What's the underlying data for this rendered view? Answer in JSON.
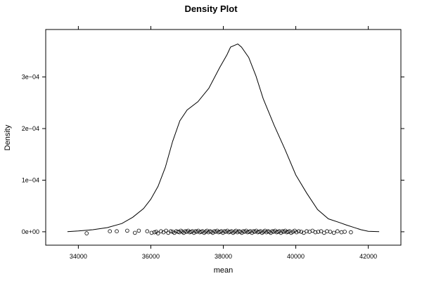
{
  "chart_data": {
    "type": "density",
    "title": "Density Plot",
    "xlabel": "mean",
    "ylabel": "Density",
    "xlim": [
      33100,
      42900
    ],
    "ylim": [
      -2.6e-05,
      0.000392
    ],
    "x_ticks": [
      34000,
      36000,
      38000,
      40000,
      42000
    ],
    "x_tick_labels": [
      "34000",
      "36000",
      "38000",
      "40000",
      "42000"
    ],
    "y_ticks": [
      0,
      0.0001,
      0.0002,
      0.0003
    ],
    "y_tick_labels": [
      "0e+00",
      "1e−04",
      "2e−04",
      "3e−04"
    ],
    "grid": false,
    "line_color": "#000000",
    "point_color": "#000000",
    "series": [
      {
        "kind": "line",
        "x": [
          33700,
          34000,
          34400,
          34800,
          35200,
          35500,
          35800,
          36000,
          36200,
          36400,
          36600,
          36800,
          37000,
          37300,
          37600,
          37900,
          38100,
          38200,
          38400,
          38500,
          38700,
          38900,
          39100,
          39400,
          39700,
          40000,
          40300,
          40600,
          40900,
          41200,
          41400,
          41600,
          41800,
          42000,
          42300
        ],
        "y": [
          3e-07,
          1.5e-06,
          4e-06,
          8e-06,
          1.6e-05,
          2.8e-05,
          4.5e-05,
          6.3e-05,
          8.8e-05,
          0.000125,
          0.000175,
          0.000215,
          0.000236,
          0.000252,
          0.000278,
          0.000318,
          0.000343,
          0.000358,
          0.000364,
          0.000358,
          0.000338,
          0.000302,
          0.000258,
          0.000207,
          0.00016,
          0.00011,
          7.5e-05,
          4.3e-05,
          2.5e-05,
          1.8e-05,
          1.3e-05,
          8.5e-06,
          4e-06,
          1e-06,
          3e-07
        ]
      },
      {
        "kind": "rug",
        "x": [
          34230,
          34870,
          35060,
          35350,
          35560,
          35670,
          35900,
          36020,
          36100,
          36150,
          36200,
          36280,
          36350,
          36420,
          36480,
          36550,
          36600,
          36650,
          36700,
          36750,
          36790,
          36830,
          36870,
          36910,
          36950,
          36990,
          37030,
          37070,
          37110,
          37150,
          37190,
          37230,
          37270,
          37310,
          37350,
          37390,
          37430,
          37470,
          37510,
          37550,
          37590,
          37630,
          37670,
          37710,
          37750,
          37790,
          37830,
          37870,
          37910,
          37950,
          37990,
          38030,
          38070,
          38110,
          38150,
          38190,
          38230,
          38270,
          38310,
          38350,
          38390,
          38430,
          38470,
          38510,
          38550,
          38590,
          38630,
          38670,
          38710,
          38750,
          38790,
          38830,
          38870,
          38910,
          38950,
          38990,
          39030,
          39070,
          39110,
          39150,
          39190,
          39230,
          39270,
          39310,
          39350,
          39390,
          39430,
          39470,
          39510,
          39550,
          39590,
          39630,
          39670,
          39710,
          39750,
          39790,
          39830,
          39870,
          39920,
          39970,
          40020,
          40080,
          40150,
          40220,
          40300,
          40380,
          40460,
          40540,
          40620,
          40700,
          40780,
          40860,
          40950,
          41050,
          41150,
          41260,
          41350,
          41520
        ],
        "y": [
          -3e-06,
          1e-06,
          1e-06,
          2e-06,
          -2e-06,
          2e-06,
          1e-06,
          -2e-06,
          -1e-06,
          0.0,
          -3e-06,
          1e-06,
          -1e-06,
          2e-06,
          -2e-06,
          1e-06,
          0.0,
          -2e-06,
          1e-06,
          0.0,
          -1e-06,
          2e-06,
          0.0,
          -2e-06,
          1e-06,
          0.0,
          2e-06,
          -1e-06,
          0.0,
          1e-06,
          -2e-06,
          1e-06,
          0.0,
          2e-06,
          -1e-06,
          0.0,
          1e-06,
          -2e-06,
          0.0,
          2e-06,
          -1e-06,
          1e-06,
          0.0,
          -2e-06,
          1e-06,
          0.0,
          2e-06,
          -1e-06,
          0.0,
          1e-06,
          -2e-06,
          1e-06,
          0.0,
          2e-06,
          -1e-06,
          0.0,
          1e-06,
          -2e-06,
          0.0,
          2e-06,
          -1e-06,
          1e-06,
          0.0,
          -2e-06,
          1e-06,
          0.0,
          2e-06,
          -1e-06,
          0.0,
          1e-06,
          -2e-06,
          1e-06,
          0.0,
          2e-06,
          -1e-06,
          0.0,
          1e-06,
          -2e-06,
          0.0,
          2e-06,
          -1e-06,
          1e-06,
          0.0,
          -2e-06,
          1e-06,
          0.0,
          2e-06,
          -1e-06,
          0.0,
          1e-06,
          -2e-06,
          1e-06,
          0.0,
          2e-06,
          -1e-06,
          0.0,
          1e-06,
          -2e-06,
          0.0,
          2e-06,
          -1e-06,
          1e-06,
          0.0,
          -2e-06,
          1e-06,
          0.0,
          2e-06,
          -1e-06,
          0.0,
          1e-06,
          -2e-06,
          1e-06,
          0.0,
          -2e-06,
          1e-06,
          -1e-06,
          0.0,
          -1e-06
        ]
      }
    ]
  }
}
